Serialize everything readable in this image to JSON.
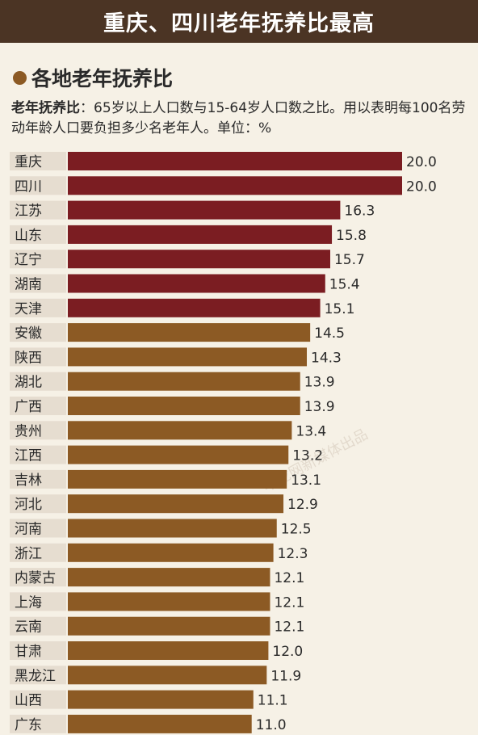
{
  "header": {
    "title": "重庆、四川老年抚养比最高"
  },
  "section": {
    "title": "各地老年抚养比"
  },
  "description": {
    "term": "老年抚养比",
    "text": "：65岁以上人口数与15-64岁人口数之比。用以表明每100名劳动年龄人口要负担多少名老年人。单位：%"
  },
  "watermark": "华龙网新媒体出品",
  "colors": {
    "dark_red": "#7b1d22",
    "brown": "#8c5a24",
    "label_bg": "#e6ddd0"
  },
  "chart_data": {
    "type": "bar",
    "orientation": "horizontal",
    "categories": [
      "重庆",
      "四川",
      "江苏",
      "山东",
      "辽宁",
      "湖南",
      "天津",
      "安徽",
      "陕西",
      "湖北",
      "广西",
      "贵州",
      "江西",
      "吉林",
      "河北",
      "河南",
      "浙江",
      "内蒙古",
      "上海",
      "云南",
      "甘肃",
      "黑龙江",
      "山西",
      "广东"
    ],
    "values": [
      20.0,
      20.0,
      16.3,
      15.8,
      15.7,
      15.4,
      15.1,
      14.5,
      14.3,
      13.9,
      13.9,
      13.4,
      13.2,
      13.1,
      12.9,
      12.5,
      12.3,
      12.1,
      12.1,
      12.1,
      12.0,
      11.9,
      11.1,
      11.0
    ],
    "value_labels": [
      "20.0",
      "20.0",
      "16.3",
      "15.8",
      "15.7",
      "15.4",
      "15.1",
      "14.5",
      "14.3",
      "13.9",
      "13.9",
      "13.4",
      "13.2",
      "13.1",
      "12.9",
      "12.5",
      "12.3",
      "12.1",
      "12.1",
      "12.1",
      "12.0",
      "11.9",
      "11.1",
      "11.0"
    ],
    "highlight_count": 7,
    "xlim": [
      0,
      20.0
    ],
    "unit": "%"
  }
}
